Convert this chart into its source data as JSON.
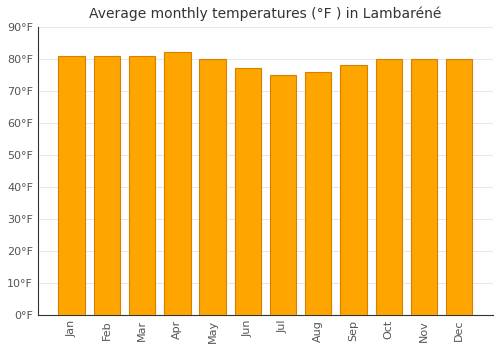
{
  "title": "Average monthly temperatures (°F ) in Lambaréné",
  "months": [
    "Jan",
    "Feb",
    "Mar",
    "Apr",
    "May",
    "Jun",
    "Jul",
    "Aug",
    "Sep",
    "Oct",
    "Nov",
    "Dec"
  ],
  "values": [
    81,
    81,
    81,
    82,
    80,
    77,
    75,
    76,
    78,
    80,
    80,
    80
  ],
  "bar_color": "#FFA500",
  "bar_edge_color": "#D48000",
  "background_color": "#FFFFFF",
  "grid_color": "#DDDDDD",
  "ylim": [
    0,
    90
  ],
  "ytick_step": 10,
  "title_fontsize": 10,
  "tick_fontsize": 8,
  "bar_width": 0.75
}
